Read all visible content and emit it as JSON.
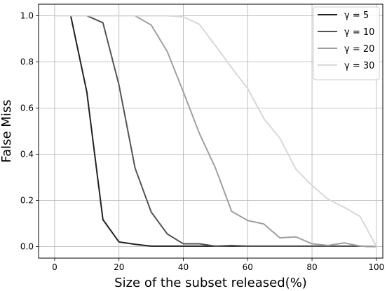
{
  "chart_data": {
    "type": "line",
    "title": "",
    "xlabel": "Size of the subset released(%)",
    "ylabel": "False Miss",
    "xlim": [
      -5,
      102
    ],
    "ylim": [
      -0.05,
      1.05
    ],
    "xticks": [
      0,
      20,
      40,
      60,
      80,
      100
    ],
    "yticks": [
      0.0,
      0.2,
      0.4,
      0.6,
      0.8,
      1.0
    ],
    "xtick_labels": [
      "0",
      "20",
      "40",
      "60",
      "80",
      "100"
    ],
    "ytick_labels": [
      "0.0",
      "0.2",
      "0.4",
      "0.6",
      "0.8",
      "1.0"
    ],
    "grid": true,
    "legend_position": "top-right",
    "x": [
      0,
      5,
      10,
      15,
      20,
      25,
      30,
      35,
      40,
      45,
      50,
      55,
      60,
      65,
      70,
      75,
      80,
      85,
      90,
      95,
      100
    ],
    "series": [
      {
        "name": "γ = 5",
        "color": "#222222",
        "values": [
          1.0,
          1.0,
          0.67,
          0.117,
          0.02,
          0.01,
          0.002,
          0.002,
          0.002,
          0.002,
          0.002,
          0.002,
          0.002,
          0.002,
          0.002,
          0.002,
          0.002,
          0.002,
          0.002,
          0.002,
          0.0
        ]
      },
      {
        "name": "γ = 10",
        "color": "#555555",
        "values": [
          1.0,
          1.0,
          1.0,
          0.97,
          0.7,
          0.34,
          0.15,
          0.055,
          0.012,
          0.012,
          0.002,
          0.005,
          0.002,
          0.002,
          0.002,
          0.002,
          0.002,
          0.002,
          0.002,
          0.002,
          0.0
        ]
      },
      {
        "name": "γ = 20",
        "color": "#a0a0a0",
        "values": [
          1.0,
          1.0,
          1.0,
          1.0,
          1.0,
          1.0,
          0.96,
          0.845,
          0.67,
          0.49,
          0.34,
          0.153,
          0.113,
          0.098,
          0.038,
          0.042,
          0.012,
          0.005,
          0.016,
          0.002,
          0.0
        ]
      },
      {
        "name": "γ = 30",
        "color": "#d8d8d8",
        "values": [
          1.0,
          1.0,
          1.0,
          1.0,
          1.0,
          1.0,
          1.0,
          1.0,
          0.995,
          0.963,
          0.87,
          0.775,
          0.685,
          0.555,
          0.47,
          0.335,
          0.265,
          0.205,
          0.17,
          0.13,
          0.0
        ]
      }
    ]
  }
}
